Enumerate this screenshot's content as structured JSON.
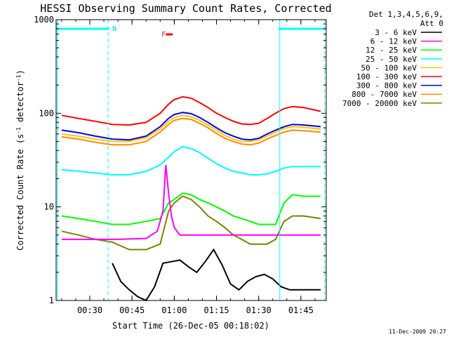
{
  "chart_data": {
    "type": "line",
    "title": "HESSI Observing Summary Count Rates, Corrected",
    "xlabel": "Start Time (26-Dec-05 00:18:02)",
    "ylabel": "Corrected Count Rate (s",
    "ylabel_sup1": "-1",
    "ylabel_mid": " detector",
    "ylabel_sup2": "-1",
    "ylabel_end": ")",
    "y_scale": "log",
    "ylim": [
      1,
      1000
    ],
    "y_ticks": [
      "1",
      "10",
      "100",
      "1000"
    ],
    "xlim": [
      "00:18:02",
      "01:54:00"
    ],
    "x_ticks": [
      "00:30",
      "00:45",
      "01:00",
      "01:15",
      "01:30",
      "01:45"
    ],
    "legend_title_1": "Det 1,3,4,5,6,9,",
    "legend_title_2": "Att 0",
    "legend_placement": "right",
    "footer_date": "11-Dec-2009 20:27",
    "night_marker": "N",
    "flare_marker": "F",
    "night_periods": [
      [
        "00:18:02",
        "00:37:00"
      ],
      [
        "01:37:00",
        "01:54:00"
      ]
    ],
    "night_label_time": "00:38:00",
    "flare_bar": [
      "00:57:00",
      "00:59:30"
    ],
    "flare_label_time": "00:55:30",
    "series": [
      {
        "name": "3 - 6 keV",
        "color": "#000000",
        "x": [
          "00:38",
          "00:41",
          "00:44",
          "00:47",
          "00:50",
          "00:53",
          "00:56",
          "00:59",
          "01:02",
          "01:05",
          "01:08",
          "01:11",
          "01:14",
          "01:17",
          "01:20",
          "01:23",
          "01:26",
          "01:29",
          "01:32",
          "01:35",
          "01:38",
          "01:41",
          "01:44",
          "01:47",
          "01:50",
          "01:52"
        ],
        "y": [
          2.5,
          1.6,
          1.3,
          1.1,
          1.0,
          1.4,
          2.5,
          2.6,
          2.7,
          2.3,
          2.0,
          2.6,
          3.5,
          2.4,
          1.5,
          1.3,
          1.6,
          1.8,
          1.9,
          1.7,
          1.4,
          1.3,
          1.3,
          1.3,
          1.3,
          1.3
        ]
      },
      {
        "name": "6 - 12 keV",
        "color": "#ff00ff",
        "x": [
          "00:20",
          "00:30",
          "00:40",
          "00:50",
          "00:54",
          "00:56",
          "00:57",
          "00:58",
          "00:59",
          "01:00",
          "01:02",
          "01:05",
          "01:10",
          "01:15",
          "01:20",
          "01:25",
          "01:30",
          "01:35",
          "01:40",
          "01:45",
          "01:52"
        ],
        "y": [
          4.5,
          4.5,
          4.5,
          4.6,
          5.5,
          9,
          28,
          14,
          8,
          6,
          5,
          5,
          5,
          5,
          5,
          5,
          5,
          5,
          5,
          5,
          5
        ]
      },
      {
        "name": "12 - 25 keV",
        "color": "#00ff00",
        "x": [
          "00:20",
          "00:26",
          "00:32",
          "00:38",
          "00:44",
          "00:50",
          "00:55",
          "00:58",
          "01:00",
          "01:03",
          "01:06",
          "01:09",
          "01:12",
          "01:15",
          "01:18",
          "01:21",
          "01:24",
          "01:27",
          "01:30",
          "01:33",
          "01:36",
          "01:39",
          "01:42",
          "01:46",
          "01:52"
        ],
        "y": [
          8,
          7.5,
          7,
          6.5,
          6.5,
          7,
          7.5,
          11,
          12,
          14,
          13.5,
          12,
          11,
          10,
          9,
          8,
          7.5,
          7,
          6.5,
          6.5,
          6.5,
          11,
          13.5,
          13,
          13
        ]
      },
      {
        "name": "25 - 50 keV",
        "color": "#00ffff",
        "x": [
          "00:20",
          "00:26",
          "00:32",
          "00:38",
          "00:44",
          "00:50",
          "00:55",
          "00:58",
          "01:00",
          "01:03",
          "01:06",
          "01:09",
          "01:12",
          "01:15",
          "01:18",
          "01:21",
          "01:24",
          "01:27",
          "01:30",
          "01:33",
          "01:36",
          "01:39",
          "01:42",
          "01:46",
          "01:52"
        ],
        "y": [
          25,
          24,
          23,
          22,
          22,
          24,
          28,
          34,
          39,
          44,
          42,
          38,
          33,
          29,
          26,
          24,
          23,
          22,
          22,
          22.5,
          24,
          26,
          27,
          27,
          27
        ]
      },
      {
        "name": "50 - 100 keV",
        "color": "#ffc800",
        "x": [
          "00:20",
          "00:26",
          "00:32",
          "00:38",
          "00:44",
          "00:50",
          "00:55",
          "00:58",
          "01:00",
          "01:03",
          "01:06",
          "01:09",
          "01:12",
          "01:15",
          "01:18",
          "01:21",
          "01:24",
          "01:27",
          "01:30",
          "01:33",
          "01:36",
          "01:39",
          "01:42",
          "01:46",
          "01:52"
        ],
        "y": [
          60,
          57,
          53,
          50,
          50,
          55,
          68,
          82,
          90,
          95,
          92,
          84,
          75,
          66,
          58,
          53,
          50,
          50,
          52,
          57,
          63,
          69,
          72,
          71,
          68
        ]
      },
      {
        "name": "100 - 300 keV",
        "color": "#ff0000",
        "x": [
          "00:20",
          "00:26",
          "00:32",
          "00:38",
          "00:44",
          "00:50",
          "00:55",
          "00:58",
          "01:00",
          "01:03",
          "01:06",
          "01:09",
          "01:12",
          "01:15",
          "01:18",
          "01:21",
          "01:24",
          "01:27",
          "01:30",
          "01:33",
          "01:36",
          "01:39",
          "01:42",
          "01:46",
          "01:52"
        ],
        "y": [
          95,
          88,
          82,
          76,
          75,
          80,
          100,
          125,
          140,
          150,
          145,
          130,
          115,
          100,
          90,
          82,
          77,
          76,
          78,
          88,
          100,
          112,
          118,
          115,
          105
        ]
      },
      {
        "name": "300 - 800 keV",
        "color": "#0000ff",
        "x": [
          "00:20",
          "00:26",
          "00:32",
          "00:38",
          "00:44",
          "00:50",
          "00:55",
          "00:58",
          "01:00",
          "01:03",
          "01:06",
          "01:09",
          "01:12",
          "01:15",
          "01:18",
          "01:21",
          "01:24",
          "01:27",
          "01:30",
          "01:33",
          "01:36",
          "01:39",
          "01:42",
          "01:46",
          "01:52"
        ],
        "y": [
          66,
          62,
          57,
          53,
          52,
          57,
          72,
          88,
          97,
          102,
          99,
          90,
          80,
          70,
          62,
          57,
          53,
          52,
          54,
          60,
          66,
          72,
          76,
          75,
          72
        ]
      },
      {
        "name": "800 - 7000 keV",
        "color": "#ff8c00",
        "x": [
          "00:20",
          "00:26",
          "00:32",
          "00:38",
          "00:44",
          "00:50",
          "00:55",
          "00:58",
          "01:00",
          "01:03",
          "01:06",
          "01:09",
          "01:12",
          "01:15",
          "01:18",
          "01:21",
          "01:24",
          "01:27",
          "01:30",
          "01:33",
          "01:36",
          "01:39",
          "01:42",
          "01:46",
          "01:52"
        ],
        "y": [
          56,
          53,
          49,
          46,
          46,
          50,
          63,
          76,
          84,
          88,
          86,
          78,
          70,
          61,
          54,
          50,
          47,
          46,
          48,
          53,
          58,
          63,
          66,
          65,
          63
        ]
      },
      {
        "name": "7000 - 20000 keV",
        "color": "#808000",
        "x": [
          "00:20",
          "00:26",
          "00:32",
          "00:38",
          "00:44",
          "00:50",
          "00:55",
          "00:58",
          "01:00",
          "01:03",
          "01:06",
          "01:09",
          "01:12",
          "01:15",
          "01:18",
          "01:21",
          "01:24",
          "01:27",
          "01:30",
          "01:33",
          "01:36",
          "01:39",
          "01:42",
          "01:46",
          "01:52"
        ],
        "y": [
          5.5,
          5,
          4.5,
          4.2,
          3.5,
          3.5,
          4,
          9,
          11,
          13,
          12,
          10,
          8,
          7,
          6,
          5,
          4.5,
          4,
          4,
          4,
          4.5,
          7,
          8,
          8,
          7.5
        ]
      }
    ]
  }
}
